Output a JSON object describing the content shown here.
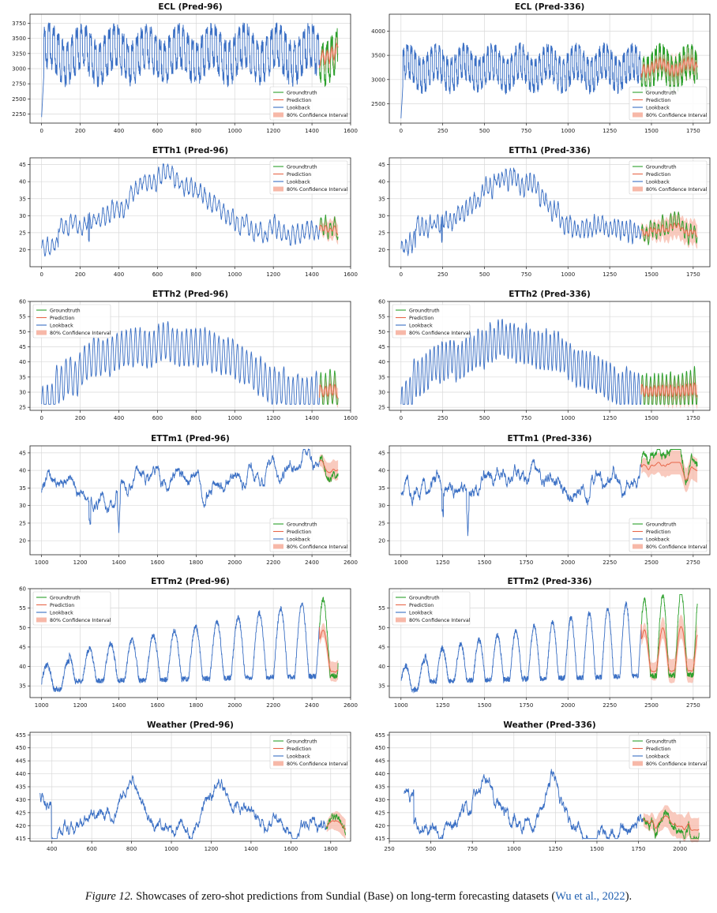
{
  "colors": {
    "groundtruth": "#2ca02c",
    "prediction": "#e8674a",
    "lookback": "#3a6fc4",
    "ci": "#f7b8a8",
    "grid": "#d9d9d9",
    "axis": "#222222"
  },
  "caption": {
    "label": "Figure 12.",
    "text": "Showcases of zero-shot predictions from Sundial (Base) on long-term forecasting datasets (",
    "citation": "Wu et al., 2022",
    "end": ")."
  },
  "chart_data": [
    {
      "id": "ecl-96",
      "type": "line",
      "title": "ECL (Pred-96)",
      "x_start": 0,
      "lookback_len": 1440,
      "pred_len": 96,
      "xlim": [
        -60,
        1600
      ],
      "ylim": [
        2100,
        3900
      ],
      "xticks": [
        0,
        200,
        400,
        600,
        800,
        1000,
        1200,
        1400,
        1600
      ],
      "yticks": [
        2250,
        2500,
        2750,
        3000,
        3250,
        3500,
        3750
      ],
      "style": "elec",
      "low": 2200,
      "high": 3850,
      "mean": 3250,
      "period": 24,
      "legend": {
        "position": "lower-right",
        "entries": [
          "Groundtruth",
          "Prediction",
          "Lookback",
          "80% Confidence Interval"
        ]
      }
    },
    {
      "id": "ecl-336",
      "type": "line",
      "title": "ECL (Pred-336)",
      "x_start": 0,
      "lookback_len": 1440,
      "pred_len": 336,
      "xlim": [
        -70,
        1850
      ],
      "ylim": [
        2100,
        4350
      ],
      "xticks": [
        0,
        250,
        500,
        750,
        1000,
        1250,
        1500,
        1750
      ],
      "yticks": [
        2500,
        3000,
        3500,
        4000
      ],
      "style": "elec",
      "low": 2200,
      "high": 3850,
      "mean": 3250,
      "period": 24,
      "legend": {
        "position": "lower-right",
        "entries": [
          "Groundtruth",
          "Prediction",
          "Lookback",
          "80% Confidence Interval"
        ]
      }
    },
    {
      "id": "etth1-96",
      "type": "line",
      "title": "ETTh1 (Pred-96)",
      "x_start": 0,
      "lookback_len": 1440,
      "pred_len": 96,
      "xlim": [
        -60,
        1600
      ],
      "ylim": [
        15,
        47
      ],
      "xticks": [
        0,
        200,
        400,
        600,
        800,
        1000,
        1200,
        1400,
        1600
      ],
      "yticks": [
        20,
        25,
        30,
        35,
        40,
        45
      ],
      "style": "etth1",
      "legend": {
        "position": "upper-right",
        "entries": [
          "Groundtruth",
          "Prediction",
          "Lookback",
          "80% Confidence Interval"
        ]
      }
    },
    {
      "id": "etth1-336",
      "type": "line",
      "title": "ETTh1 (Pred-336)",
      "x_start": 0,
      "lookback_len": 1440,
      "pred_len": 336,
      "xlim": [
        -70,
        1850
      ],
      "ylim": [
        15,
        47
      ],
      "xticks": [
        0,
        250,
        500,
        750,
        1000,
        1250,
        1500,
        1750
      ],
      "yticks": [
        20,
        25,
        30,
        35,
        40,
        45
      ],
      "style": "etth1",
      "legend": {
        "position": "upper-right",
        "entries": [
          "Groundtruth",
          "Prediction",
          "Lookback",
          "80% Confidence Interval"
        ]
      }
    },
    {
      "id": "etth2-96",
      "type": "line",
      "title": "ETTh2 (Pred-96)",
      "x_start": 0,
      "lookback_len": 1440,
      "pred_len": 96,
      "xlim": [
        -60,
        1600
      ],
      "ylim": [
        24,
        60
      ],
      "xticks": [
        0,
        200,
        400,
        600,
        800,
        1000,
        1200,
        1400,
        1600
      ],
      "yticks": [
        25,
        30,
        35,
        40,
        45,
        50,
        55,
        60
      ],
      "style": "etth2",
      "legend": {
        "position": "upper-left",
        "entries": [
          "Groundtruth",
          "Prediction",
          "Lookback",
          "80% Confidence Interval"
        ]
      }
    },
    {
      "id": "etth2-336",
      "type": "line",
      "title": "ETTh2 (Pred-336)",
      "x_start": 0,
      "lookback_len": 1440,
      "pred_len": 336,
      "xlim": [
        -70,
        1850
      ],
      "ylim": [
        24,
        60
      ],
      "xticks": [
        0,
        250,
        500,
        750,
        1000,
        1250,
        1500,
        1750
      ],
      "yticks": [
        25,
        30,
        35,
        40,
        45,
        50,
        55,
        60
      ],
      "style": "etth2",
      "legend": {
        "position": "upper-left",
        "entries": [
          "Groundtruth",
          "Prediction",
          "Lookback",
          "80% Confidence Interval"
        ]
      }
    },
    {
      "id": "ettm1-96",
      "type": "line",
      "title": "ETTm1 (Pred-96)",
      "x_start": 1000,
      "lookback_len": 1440,
      "pred_len": 96,
      "xlim": [
        940,
        2600
      ],
      "ylim": [
        16,
        47
      ],
      "xticks": [
        1000,
        1200,
        1400,
        1600,
        1800,
        2000,
        2200,
        2400,
        2600
      ],
      "yticks": [
        20,
        25,
        30,
        35,
        40,
        45
      ],
      "style": "ettm1",
      "legend": {
        "position": "lower-right",
        "entries": [
          "Groundtruth",
          "Prediction",
          "Lookback",
          "80% Confidence Interval"
        ]
      }
    },
    {
      "id": "ettm1-336",
      "type": "line",
      "title": "ETTm1 (Pred-336)",
      "x_start": 1000,
      "lookback_len": 1440,
      "pred_len": 336,
      "xlim": [
        930,
        2850
      ],
      "ylim": [
        16,
        47
      ],
      "xticks": [
        1000,
        1250,
        1500,
        1750,
        2000,
        2250,
        2500,
        2750
      ],
      "yticks": [
        20,
        25,
        30,
        35,
        40,
        45
      ],
      "style": "ettm1",
      "legend": {
        "position": "lower-right",
        "entries": [
          "Groundtruth",
          "Prediction",
          "Lookback",
          "80% Confidence Interval"
        ]
      }
    },
    {
      "id": "ettm2-96",
      "type": "line",
      "title": "ETTm2 (Pred-96)",
      "x_start": 1000,
      "lookback_len": 1440,
      "pred_len": 96,
      "xlim": [
        940,
        2600
      ],
      "ylim": [
        32,
        60
      ],
      "xticks": [
        1000,
        1200,
        1400,
        1600,
        1800,
        2000,
        2200,
        2400,
        2600
      ],
      "yticks": [
        35,
        40,
        45,
        50,
        55,
        60
      ],
      "style": "ettm2",
      "legend": {
        "position": "upper-left",
        "entries": [
          "Groundtruth",
          "Prediction",
          "Lookback",
          "80% Confidence Interval"
        ]
      }
    },
    {
      "id": "ettm2-336",
      "type": "line",
      "title": "ETTm2 (Pred-336)",
      "x_start": 1000,
      "lookback_len": 1440,
      "pred_len": 336,
      "xlim": [
        930,
        2850
      ],
      "ylim": [
        32,
        60
      ],
      "xticks": [
        1000,
        1250,
        1500,
        1750,
        2000,
        2250,
        2500,
        2750
      ],
      "yticks": [
        35,
        40,
        45,
        50,
        55
      ],
      "style": "ettm2",
      "legend": {
        "position": "upper-left",
        "entries": [
          "Groundtruth",
          "Prediction",
          "Lookback",
          "80% Confidence Interval"
        ]
      }
    },
    {
      "id": "weather-96",
      "type": "line",
      "title": "Weather (Pred-96)",
      "x_start": 340,
      "lookback_len": 1440,
      "pred_len": 96,
      "xlim": [
        290,
        1900
      ],
      "ylim": [
        414,
        456
      ],
      "xticks": [
        400,
        600,
        800,
        1000,
        1200,
        1400,
        1600,
        1800
      ],
      "yticks": [
        415,
        420,
        425,
        430,
        435,
        440,
        445,
        450,
        455
      ],
      "style": "weather",
      "legend": {
        "position": "upper-right",
        "entries": [
          "Groundtruth",
          "Prediction",
          "Lookback",
          "80% Confidence Interval"
        ]
      }
    },
    {
      "id": "weather-336",
      "type": "line",
      "title": "Weather (Pred-336)",
      "x_start": 340,
      "lookback_len": 1440,
      "pred_len": 336,
      "xlim": [
        250,
        2180
      ],
      "ylim": [
        414,
        456
      ],
      "xticks": [
        250,
        500,
        750,
        1000,
        1250,
        1500,
        1750,
        2000
      ],
      "yticks": [
        415,
        420,
        425,
        430,
        435,
        440,
        445,
        450,
        455
      ],
      "style": "weather",
      "legend": {
        "position": "upper-right",
        "entries": [
          "Groundtruth",
          "Prediction",
          "Lookback",
          "80% Confidence Interval"
        ]
      }
    }
  ]
}
